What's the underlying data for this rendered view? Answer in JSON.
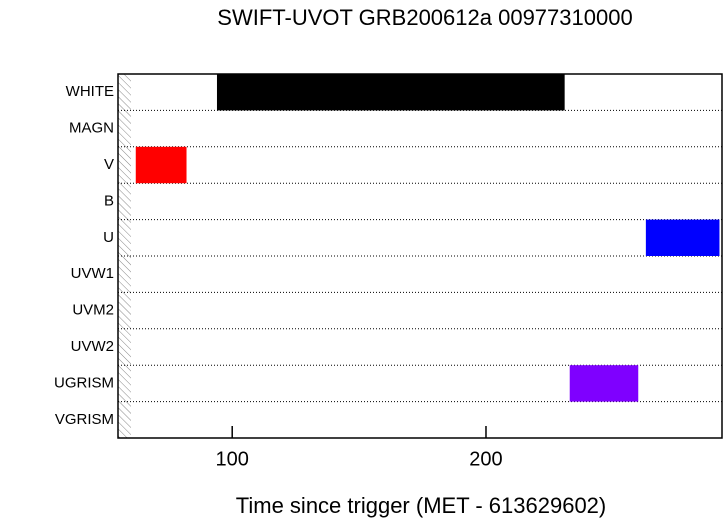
{
  "chart_data": {
    "type": "timeline",
    "title": "SWIFT-UVOT GRB200612a 00977310000",
    "x_label": "Time since trigger (MET - 613629602)",
    "categories": [
      "WHITE",
      "MAGN",
      "V",
      "B",
      "U",
      "UVW1",
      "UVM2",
      "UVW2",
      "UGRISM",
      "VGRISM"
    ],
    "xlim": [
      55,
      293
    ],
    "xticks": [
      100,
      200
    ],
    "bars": [
      {
        "category": "WHITE",
        "start": 94,
        "end": 231,
        "color": "#000000"
      },
      {
        "category": "V",
        "start": 62,
        "end": 82,
        "color": "#ff0000"
      },
      {
        "category": "U",
        "start": 263,
        "end": 292,
        "color": "#0000ff"
      },
      {
        "category": "UGRISM",
        "start": 233,
        "end": 260,
        "color": "#7f00ff"
      }
    ]
  }
}
